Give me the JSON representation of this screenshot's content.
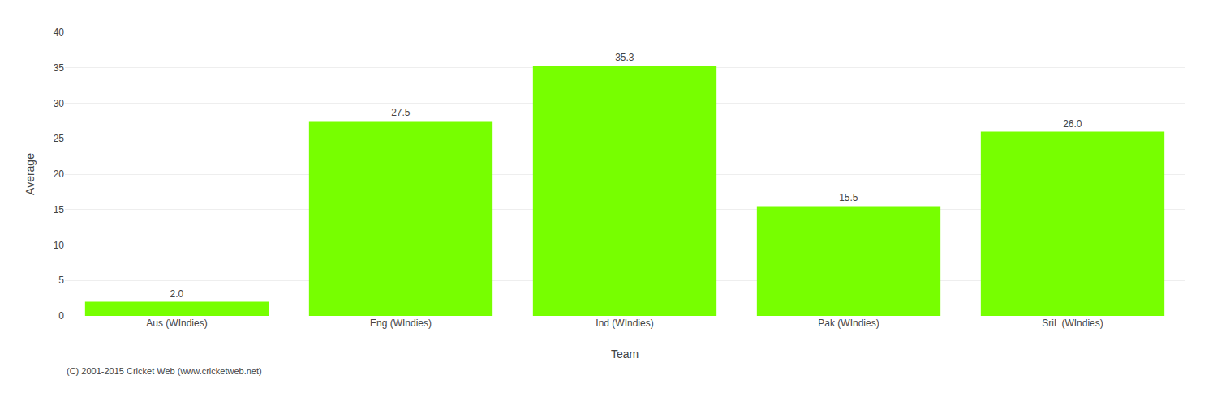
{
  "chart_data": {
    "type": "bar",
    "categories": [
      "Aus (WIndies)",
      "Eng (WIndies)",
      "Ind (WIndies)",
      "Pak (WIndies)",
      "SriL (WIndies)"
    ],
    "values": [
      2.0,
      27.5,
      35.3,
      15.5,
      26.0
    ],
    "value_labels": [
      "2.0",
      "27.5",
      "35.3",
      "15.5",
      "26.0"
    ],
    "data_labels": true,
    "color": "#77ff00",
    "xlabel": "Team",
    "ylabel": "Average",
    "ylim": [
      0,
      40
    ],
    "yticks": [
      0,
      5,
      10,
      15,
      20,
      25,
      30,
      35,
      40
    ],
    "grid": true,
    "annotations": [
      "(C) 2001-2015 Cricket Web (www.cricketweb.net)"
    ]
  }
}
